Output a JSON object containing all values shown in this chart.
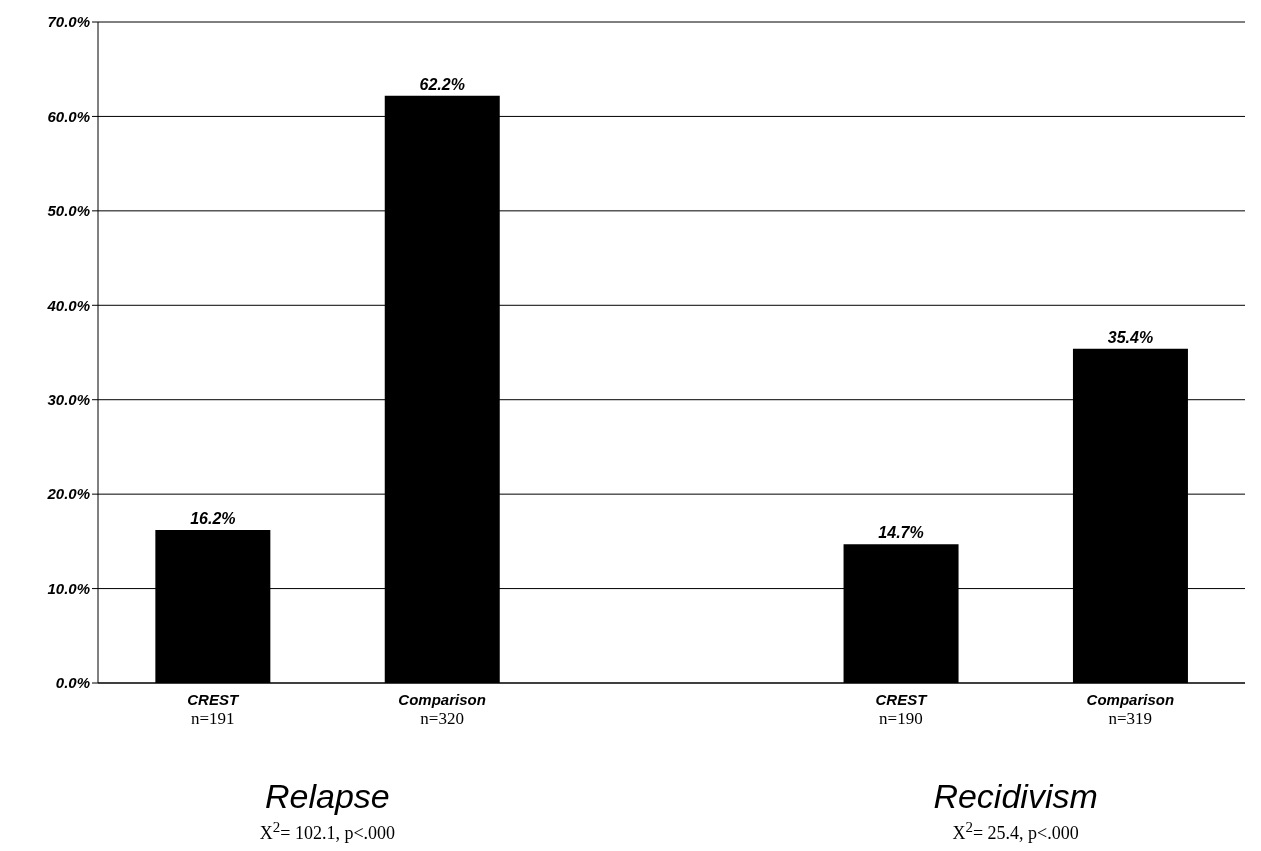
{
  "chart_data": {
    "type": "bar",
    "categories": [
      "CREST\nn=191",
      "Comparison\nn=320",
      null,
      "CREST\nn=190",
      "Comparison\nn=319"
    ],
    "values": [
      16.2,
      62.2,
      null,
      14.7,
      35.4
    ],
    "value_labels": [
      "16.2%",
      "62.2%",
      null,
      "14.7%",
      "35.4%"
    ],
    "color": "#000000",
    "ylim": [
      0,
      70
    ],
    "yticks": [
      {
        "value": 0,
        "label": "0.0%"
      },
      {
        "value": 10,
        "label": "10.0%"
      },
      {
        "value": 20,
        "label": "20.0%"
      },
      {
        "value": 30,
        "label": "30.0%"
      },
      {
        "value": 40,
        "label": "40.0%"
      },
      {
        "value": 50,
        "label": "50.0%"
      },
      {
        "value": 60,
        "label": "60.0%"
      },
      {
        "value": 70,
        "label": "70.0%"
      }
    ],
    "grid": "y",
    "annotations": [
      "Relapse",
      "X$^{2}$= 102.1, p<.000",
      "Recidivism",
      "X$^{2}$= 25.4, p<.000"
    ]
  }
}
